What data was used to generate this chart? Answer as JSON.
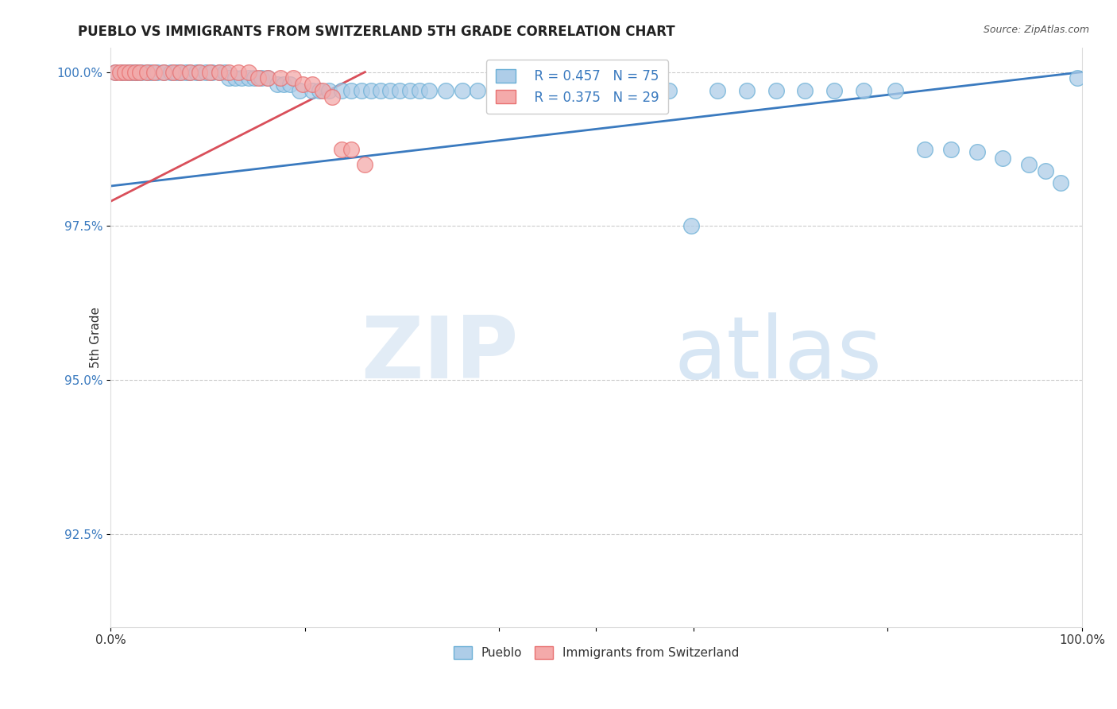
{
  "title": "PUEBLO VS IMMIGRANTS FROM SWITZERLAND 5TH GRADE CORRELATION CHART",
  "source": "Source: ZipAtlas.com",
  "ylabel": "5th Grade",
  "xlim": [
    0.0,
    1.0
  ],
  "ylim": [
    0.91,
    1.004
  ],
  "yticks": [
    0.925,
    0.95,
    0.975,
    1.0
  ],
  "ytick_labels": [
    "92.5%",
    "95.0%",
    "97.5%",
    "100.0%"
  ],
  "blue_R": 0.457,
  "blue_N": 75,
  "pink_R": 0.375,
  "pink_N": 29,
  "blue_color": "#aecde8",
  "pink_color": "#f4aaaa",
  "blue_edge_color": "#6aafd6",
  "pink_edge_color": "#e87070",
  "blue_line_color": "#3a7abf",
  "pink_line_color": "#d94f5a",
  "legend_label_blue": "Pueblo",
  "legend_label_pink": "Immigrants from Switzerland",
  "blue_scatter_x": [
    0.005,
    0.012,
    0.018,
    0.022,
    0.025,
    0.028,
    0.032,
    0.038,
    0.042,
    0.048,
    0.055,
    0.062,
    0.068,
    0.072,
    0.078,
    0.082,
    0.088,
    0.092,
    0.098,
    0.105,
    0.112,
    0.118,
    0.122,
    0.128,
    0.135,
    0.142,
    0.148,
    0.155,
    0.162,
    0.172,
    0.178,
    0.185,
    0.195,
    0.208,
    0.215,
    0.225,
    0.238,
    0.248,
    0.258,
    0.268,
    0.278,
    0.288,
    0.298,
    0.308,
    0.318,
    0.328,
    0.345,
    0.362,
    0.378,
    0.395,
    0.415,
    0.435,
    0.455,
    0.478,
    0.495,
    0.515,
    0.535,
    0.555,
    0.575,
    0.598,
    0.625,
    0.655,
    0.685,
    0.715,
    0.745,
    0.775,
    0.808,
    0.838,
    0.865,
    0.892,
    0.918,
    0.945,
    0.962,
    0.978,
    0.995
  ],
  "blue_scatter_y": [
    1.0,
    1.0,
    1.0,
    1.0,
    1.0,
    1.0,
    1.0,
    1.0,
    1.0,
    1.0,
    1.0,
    1.0,
    1.0,
    1.0,
    1.0,
    1.0,
    1.0,
    1.0,
    1.0,
    1.0,
    1.0,
    1.0,
    0.999,
    0.999,
    0.999,
    0.999,
    0.999,
    0.999,
    0.999,
    0.998,
    0.998,
    0.998,
    0.997,
    0.997,
    0.997,
    0.997,
    0.997,
    0.997,
    0.997,
    0.997,
    0.997,
    0.997,
    0.997,
    0.997,
    0.997,
    0.997,
    0.997,
    0.997,
    0.997,
    0.997,
    0.997,
    0.997,
    0.997,
    0.997,
    0.997,
    0.997,
    0.997,
    0.997,
    0.997,
    0.975,
    0.997,
    0.997,
    0.997,
    0.997,
    0.997,
    0.997,
    0.997,
    0.9875,
    0.9875,
    0.987,
    0.986,
    0.985,
    0.984,
    0.982,
    0.999
  ],
  "pink_scatter_x": [
    0.005,
    0.01,
    0.015,
    0.02,
    0.025,
    0.03,
    0.038,
    0.045,
    0.055,
    0.065,
    0.072,
    0.082,
    0.092,
    0.102,
    0.112,
    0.122,
    0.132,
    0.142,
    0.152,
    0.162,
    0.175,
    0.188,
    0.198,
    0.208,
    0.218,
    0.228,
    0.238,
    0.248,
    0.262
  ],
  "pink_scatter_y": [
    1.0,
    1.0,
    1.0,
    1.0,
    1.0,
    1.0,
    1.0,
    1.0,
    1.0,
    1.0,
    1.0,
    1.0,
    1.0,
    1.0,
    1.0,
    1.0,
    1.0,
    1.0,
    0.999,
    0.999,
    0.999,
    0.999,
    0.998,
    0.998,
    0.997,
    0.996,
    0.9875,
    0.9875,
    0.985
  ],
  "blue_line_x0": 0.0,
  "blue_line_x1": 1.0,
  "blue_line_y0": 0.9815,
  "blue_line_y1": 1.0,
  "pink_line_x0": 0.0,
  "pink_line_x1": 0.262,
  "pink_line_y0": 0.979,
  "pink_line_y1": 1.0
}
